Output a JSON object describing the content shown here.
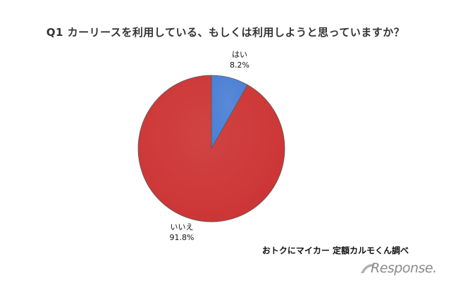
{
  "title": "Q1 カーリースを利用している、もしくは利用しようと思っていますか？",
  "source": "おトクにマイカー 定額カルモくん調べ",
  "logo": "Response.",
  "chart_data": {
    "type": "pie",
    "title": "Q1 カーリースを利用している、もしくは利用しようと思っていますか？",
    "slices": [
      {
        "label": "はい",
        "value": 8.2,
        "value_label": "8.2%",
        "color": "#4a7fd4"
      },
      {
        "label": "いいえ",
        "value": 91.8,
        "value_label": "91.8%",
        "color": "#cc3333"
      }
    ],
    "legend": "none"
  }
}
